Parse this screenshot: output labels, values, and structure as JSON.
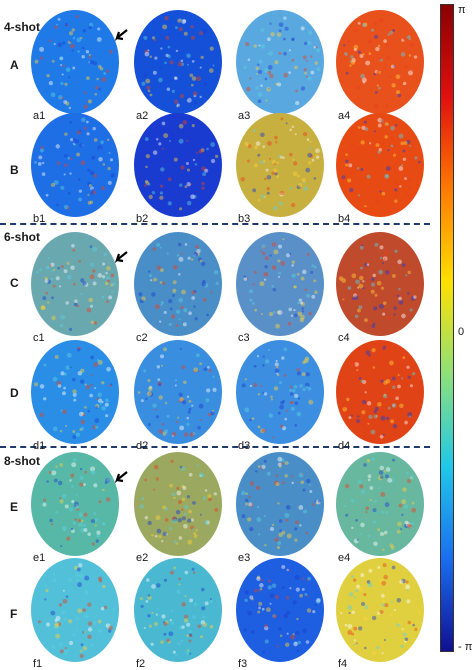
{
  "figure": {
    "shot_groups": [
      {
        "label": "4-shot",
        "rows": [
          "A",
          "B"
        ]
      },
      {
        "label": "6-shot",
        "rows": [
          "C",
          "D"
        ]
      },
      {
        "label": "8-shot",
        "rows": [
          "E",
          "F"
        ]
      }
    ],
    "rows": [
      {
        "label": "A",
        "panels": [
          "a1",
          "a2",
          "a3",
          "a4"
        ],
        "colors": [
          "#1f7ae8",
          "#1450d8",
          "#5aa8e0",
          "#e8501c"
        ]
      },
      {
        "label": "B",
        "panels": [
          "b1",
          "b2",
          "b3",
          "b4"
        ],
        "colors": [
          "#1e6ee6",
          "#1a3bd0",
          "#c8b040",
          "#e84a14"
        ]
      },
      {
        "label": "C",
        "panels": [
          "c1",
          "c2",
          "c3",
          "c4"
        ],
        "colors": [
          "#6aa8b0",
          "#4a8ec8",
          "#5a90c8",
          "#c04a2c"
        ]
      },
      {
        "label": "D",
        "panels": [
          "d1",
          "d2",
          "d3",
          "d4"
        ],
        "colors": [
          "#2a8ee6",
          "#3a8ee0",
          "#3c8ee0",
          "#e04416"
        ]
      },
      {
        "label": "E",
        "panels": [
          "e1",
          "e2",
          "e3",
          "e4"
        ],
        "colors": [
          "#58b8a8",
          "#9aa860",
          "#4a8ec8",
          "#68b8a0"
        ]
      },
      {
        "label": "F",
        "panels": [
          "f1",
          "f2",
          "f3",
          "f4"
        ],
        "colors": [
          "#52c0d8",
          "#4ab8d0",
          "#1e5ee0",
          "#e0d040"
        ]
      }
    ],
    "colorbar": {
      "top_label": "π",
      "mid_label": "0",
      "bottom_label": "- π",
      "stops": [
        "#8a0000",
        "#e01010",
        "#ff7a00",
        "#ffe000",
        "#8ee07a",
        "#20c8e8",
        "#1a6ef0",
        "#101090"
      ]
    }
  }
}
